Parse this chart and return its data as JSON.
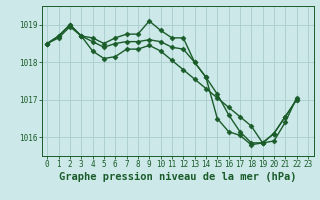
{
  "background_color": "#cce8e8",
  "plot_bg_color": "#cce8e8",
  "grid_color": "#aacccc",
  "line_color": "#1a5c2a",
  "title": "Graphe pression niveau de la mer (hPa)",
  "ylim": [
    1015.5,
    1019.5
  ],
  "yticks": [
    1016,
    1017,
    1018,
    1019
  ],
  "xlim": [
    -0.5,
    23.5
  ],
  "xticks": [
    0,
    1,
    2,
    3,
    4,
    5,
    6,
    7,
    8,
    9,
    10,
    11,
    12,
    13,
    14,
    15,
    16,
    17,
    18,
    19,
    20,
    21,
    22,
    23
  ],
  "line1_x": [
    0,
    1,
    2,
    3,
    4,
    5,
    6,
    7,
    8,
    9,
    10,
    11,
    12,
    13,
    14,
    15,
    16,
    17,
    18,
    19,
    20,
    21,
    22
  ],
  "line1_y": [
    1018.5,
    1018.7,
    1019.0,
    1018.7,
    1018.65,
    1018.5,
    1018.65,
    1018.75,
    1018.75,
    1019.1,
    1018.85,
    1018.65,
    1018.65,
    1018.0,
    1017.6,
    1016.5,
    1016.15,
    1016.05,
    1015.8,
    1015.85,
    1016.1,
    1016.55,
    1017.0
  ],
  "line2_x": [
    0,
    1,
    2,
    3,
    4,
    5,
    6,
    7,
    8,
    9,
    10,
    11,
    12,
    13,
    14,
    15,
    16,
    17,
    18,
    19,
    20,
    21,
    22
  ],
  "line2_y": [
    1018.5,
    1018.7,
    1019.0,
    1018.7,
    1018.55,
    1018.4,
    1018.5,
    1018.55,
    1018.55,
    1018.6,
    1018.55,
    1018.4,
    1018.35,
    1018.0,
    1017.6,
    1017.15,
    1016.6,
    1016.15,
    1015.85,
    1015.85,
    1016.1,
    1016.55,
    1017.0
  ],
  "line3_x": [
    0,
    1,
    2,
    3,
    4,
    5,
    6,
    7,
    8,
    9,
    10,
    11,
    12,
    13,
    14,
    15,
    16,
    17,
    18,
    19,
    20,
    21,
    22
  ],
  "line3_y": [
    1018.5,
    1018.65,
    1018.95,
    1018.7,
    1018.3,
    1018.1,
    1018.15,
    1018.35,
    1018.35,
    1018.45,
    1018.3,
    1018.05,
    1017.8,
    1017.55,
    1017.3,
    1017.05,
    1016.8,
    1016.55,
    1016.3,
    1015.85,
    1015.9,
    1016.4,
    1017.05
  ],
  "marker_size": 2.5,
  "linewidth": 1.0,
  "title_fontsize": 7.5,
  "tick_fontsize": 5.5
}
